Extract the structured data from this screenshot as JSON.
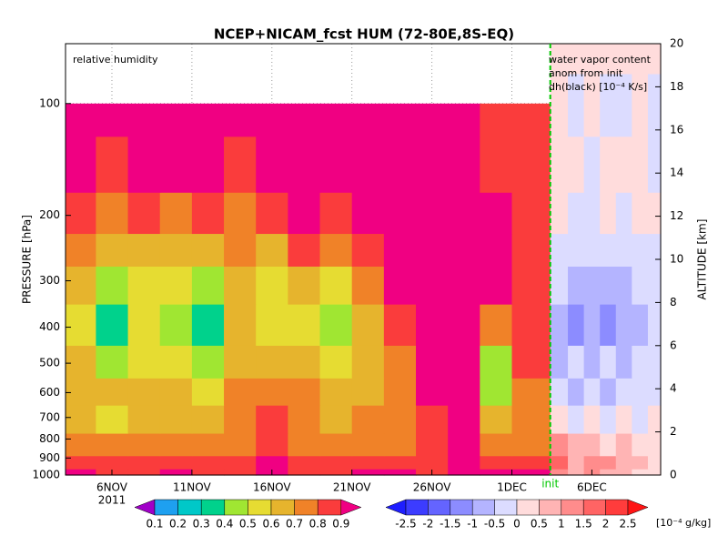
{
  "chart_data": {
    "type": "contour",
    "title": "NCEP+NICAM_fcst HUM (72-80E,8S-EQ)",
    "field_label": "relative humidity",
    "forecast_labels": [
      "water vapor content",
      "anom from init",
      "dh(black) [10⁻⁴ K/s]"
    ],
    "ylabel": "PRESSURE [hPa]",
    "y2label": "ALTITUDE [km]",
    "year": "2011",
    "init": {
      "value": 33.4,
      "label": "init",
      "color": "#00c800"
    },
    "xlim": [
      3.1,
      40.3
    ],
    "xticks": [
      {
        "value": 6,
        "label": "6NOV"
      },
      {
        "value": 11,
        "label": "11NOV"
      },
      {
        "value": 16,
        "label": "16NOV"
      },
      {
        "value": 21,
        "label": "21NOV"
      },
      {
        "value": 26,
        "label": "26NOV"
      },
      {
        "value": 31,
        "label": "1DEC"
      },
      {
        "value": 36,
        "label": "6DEC"
      }
    ],
    "ylim": [
      1000,
      69
    ],
    "log_y": true,
    "yticks": [
      100,
      200,
      300,
      400,
      500,
      600,
      700,
      800,
      900,
      1000
    ],
    "y2lim": [
      0,
      20
    ],
    "y2ticks": [
      0,
      2,
      4,
      6,
      8,
      10,
      12,
      14,
      16,
      18,
      20
    ],
    "grid": true,
    "humidity": {
      "levels": [
        0.1,
        0.2,
        0.3,
        0.4,
        0.5,
        0.6,
        0.7,
        0.8,
        0.9
      ],
      "colors": [
        "#a000c8",
        "#1ea0f0",
        "#00c8c8",
        "#00d28c",
        "#a0e632",
        "#e6dc32",
        "#e6b42d",
        "#f08228",
        "#fa3c3c",
        "#f00082"
      ],
      "x": [
        4,
        6,
        8,
        10,
        12,
        14,
        16,
        18,
        20,
        22,
        24,
        26,
        28,
        30,
        32
      ],
      "pressure": [
        1000,
        925,
        850,
        700,
        600,
        500,
        400,
        300,
        250,
        200,
        150,
        100
      ],
      "values": [
        [
          0.95,
          0.85,
          0.85,
          0.95,
          0.85,
          0.85,
          0.95,
          0.85,
          0.85,
          0.95,
          0.95,
          0.85,
          0.95,
          0.95,
          0.95
        ],
        [
          0.85,
          0.85,
          0.85,
          0.85,
          0.85,
          0.85,
          0.9,
          0.85,
          0.85,
          0.85,
          0.85,
          0.85,
          0.92,
          0.85,
          0.85
        ],
        [
          0.75,
          0.7,
          0.75,
          0.75,
          0.75,
          0.75,
          0.85,
          0.75,
          0.75,
          0.75,
          0.75,
          0.85,
          0.95,
          0.75,
          0.75
        ],
        [
          0.65,
          0.55,
          0.65,
          0.65,
          0.65,
          0.75,
          0.85,
          0.7,
          0.65,
          0.7,
          0.75,
          0.85,
          0.95,
          0.65,
          0.7
        ],
        [
          0.65,
          0.6,
          0.6,
          0.65,
          0.55,
          0.7,
          0.75,
          0.7,
          0.6,
          0.65,
          0.75,
          0.92,
          0.95,
          0.45,
          0.75
        ],
        [
          0.6,
          0.45,
          0.55,
          0.55,
          0.45,
          0.6,
          0.65,
          0.6,
          0.5,
          0.6,
          0.75,
          0.95,
          0.95,
          0.45,
          0.8
        ],
        [
          0.55,
          0.35,
          0.5,
          0.45,
          0.3,
          0.6,
          0.55,
          0.5,
          0.45,
          0.65,
          0.8,
          0.95,
          0.95,
          0.75,
          0.85
        ],
        [
          0.65,
          0.4,
          0.55,
          0.5,
          0.4,
          0.65,
          0.5,
          0.65,
          0.55,
          0.75,
          0.9,
          0.95,
          0.95,
          0.92,
          0.8
        ],
        [
          0.75,
          0.6,
          0.65,
          0.65,
          0.6,
          0.7,
          0.65,
          0.8,
          0.7,
          0.85,
          0.95,
          0.95,
          0.95,
          0.95,
          0.85
        ],
        [
          0.85,
          0.75,
          0.85,
          0.75,
          0.85,
          0.75,
          0.8,
          0.9,
          0.85,
          0.92,
          0.95,
          0.95,
          0.95,
          0.95,
          0.85
        ],
        [
          0.92,
          0.88,
          0.95,
          0.9,
          0.95,
          0.85,
          0.92,
          0.95,
          0.95,
          0.95,
          0.95,
          0.95,
          0.95,
          0.85,
          0.8
        ],
        [
          0.95,
          0.95,
          0.95,
          0.95,
          0.95,
          0.95,
          0.95,
          0.95,
          0.95,
          0.95,
          0.95,
          0.95,
          0.95,
          0.8,
          0.85
        ]
      ]
    },
    "anomaly": {
      "units": "[10⁻⁴ g/kg]",
      "levels": [
        -2.5,
        -2,
        -1.5,
        -1,
        -0.5,
        0,
        0.5,
        1,
        1.5,
        2,
        2.5
      ],
      "colors": [
        "#1e1eff",
        "#3c3cff",
        "#6464ff",
        "#8c8cff",
        "#b4b4ff",
        "#dcdcff",
        "#ffdcdc",
        "#ffb4b4",
        "#ff8c8c",
        "#ff6464",
        "#ff3c3c",
        "#ff1414"
      ],
      "x": [
        34,
        35,
        36,
        37,
        38,
        39,
        40
      ],
      "pressure": [
        1000,
        925,
        850,
        700,
        600,
        500,
        400,
        300,
        250,
        200,
        150,
        100,
        69
      ],
      "values": [
        [
          1.2,
          0.8,
          1.2,
          0.6,
          0.8,
          0.3,
          0.3
        ],
        [
          1.8,
          0.8,
          1.2,
          1.0,
          0.8,
          0.6,
          0.3
        ],
        [
          1.2,
          0.6,
          0.8,
          0.3,
          0.6,
          0.3,
          0.3
        ],
        [
          0.3,
          -0.3,
          0.3,
          -0.3,
          0.2,
          -0.3,
          0.3
        ],
        [
          -0.3,
          -0.7,
          -0.3,
          -0.7,
          -0.3,
          -0.3,
          -0.3
        ],
        [
          -0.7,
          -0.3,
          -0.7,
          -0.3,
          -0.7,
          -0.3,
          -0.3
        ],
        [
          -0.7,
          -1.2,
          -0.7,
          -1.2,
          -0.7,
          -0.7,
          -0.3
        ],
        [
          -0.3,
          -0.7,
          -0.7,
          -0.7,
          -0.7,
          -0.3,
          -0.3
        ],
        [
          -0.3,
          -0.3,
          -0.3,
          -0.3,
          -0.3,
          -0.3,
          -0.3
        ],
        [
          0.2,
          -0.3,
          -0.3,
          0.2,
          -0.3,
          0.2,
          0.2
        ],
        [
          0.2,
          0.2,
          -0.3,
          0.2,
          0.2,
          0.2,
          -0.3
        ],
        [
          0.2,
          -0.3,
          0.2,
          -0.3,
          -0.3,
          0.2,
          -0.3
        ],
        [
          0.2,
          0.2,
          0.2,
          0.2,
          0.2,
          0.2,
          0.2
        ]
      ]
    }
  }
}
